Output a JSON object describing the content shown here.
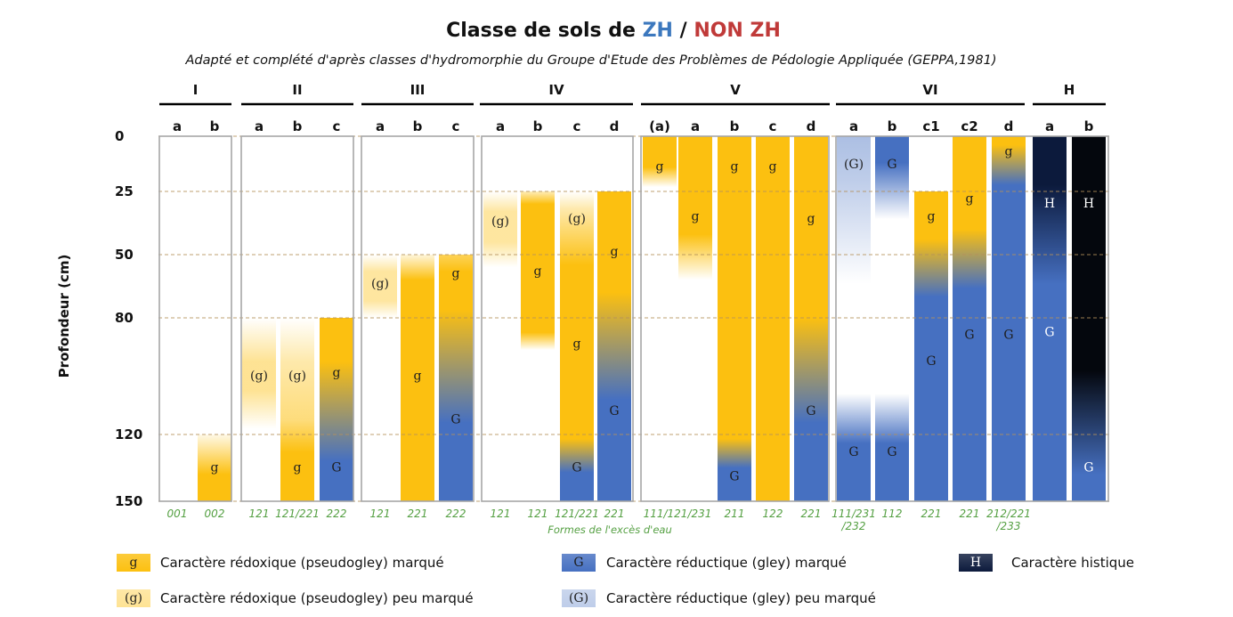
{
  "title": {
    "prefix": "Classe de sols de ",
    "zh": "ZH",
    "sep": " / ",
    "nonzh": "NON ZH"
  },
  "subtitle": "Adapté et complété d'après classes d'hydromorphie du Groupe d'Etude des Problèmes de Pédologie Appliquée (GEPPA,1981)",
  "ylabel": "Profondeur (cm)",
  "footer_label": "Formes de l'excès d'eau",
  "colors": {
    "zh": "#3c78be",
    "nonzh": "#c03a39",
    "mark": "#1e1e1e",
    "code": "#55a043",
    "frame": "#a6a6a6",
    "grid": "#b5915a"
  },
  "chart_data": {
    "type": "diagram",
    "y_axis": "depth (cm)"
  },
  "depth_ticks": [
    0,
    25,
    50,
    80,
    120,
    150
  ],
  "groups": [
    {
      "label": "I",
      "columns": [
        {
          "letter": "a",
          "letter_color": "#c03a39",
          "code": [
            "001"
          ],
          "profile": [],
          "marks": []
        },
        {
          "letter": "b",
          "letter_color": "#c03a39",
          "code": [
            "002"
          ],
          "profile": [
            [
              120,
              "#fcc010",
              0.1
            ],
            [
              138,
              "#fcc010",
              1
            ],
            [
              150,
              "#fcc010",
              1
            ]
          ],
          "marks": [
            {
              "t": "g",
              "d": 135
            }
          ]
        }
      ]
    },
    {
      "label": "II",
      "columns": [
        {
          "letter": "a",
          "letter_color": "#c03a39",
          "code": [
            "121"
          ],
          "profile": [
            [
              80,
              "#fcc010",
              0
            ],
            [
              95,
              "#fcc010",
              0.45
            ],
            [
              105,
              "#fcc010",
              0.45
            ],
            [
              118,
              "#fcc010",
              0
            ]
          ],
          "marks": [
            {
              "t": "(g)",
              "d": 100
            }
          ]
        },
        {
          "letter": "b",
          "letter_color": "#c03a39",
          "code": [
            "121/221"
          ],
          "profile": [
            [
              80,
              "#fcc010",
              0
            ],
            [
              95,
              "#fcc010",
              0.35
            ],
            [
              115,
              "#fcc010",
              0.55
            ],
            [
              128,
              "#fcc010",
              1
            ],
            [
              150,
              "#fcc010",
              1
            ]
          ],
          "marks": [
            {
              "t": "(g)",
              "d": 100
            },
            {
              "t": "g",
              "d": 135
            }
          ]
        },
        {
          "letter": "c",
          "letter_color": "#c03a39",
          "code": [
            "222"
          ],
          "profile": [
            [
              80,
              "#fcc010",
              1
            ],
            [
              95,
              "#fcc010",
              1
            ],
            [
              132,
              "#4670c1",
              1
            ],
            [
              150,
              "#4670c1",
              1
            ]
          ],
          "marks": [
            {
              "t": "g",
              "d": 99
            },
            {
              "t": "G",
              "d": 135
            }
          ]
        }
      ]
    },
    {
      "label": "III",
      "columns": [
        {
          "letter": "a",
          "letter_color": "#c03a39",
          "code": [
            "121"
          ],
          "profile": [
            [
              50,
              "#fcc010",
              0
            ],
            [
              58,
              "#fcc010",
              0.4
            ],
            [
              72,
              "#fcc010",
              0.4
            ],
            [
              80,
              "#fcc010",
              0
            ]
          ],
          "marks": [
            {
              "t": "(g)",
              "d": 64
            }
          ]
        },
        {
          "letter": "b",
          "letter_color": "#c03a39",
          "code": [
            "221"
          ],
          "profile": [
            [
              50,
              "#fcc010",
              0.15
            ],
            [
              62,
              "#fcc010",
              1
            ],
            [
              150,
              "#fcc010",
              1
            ]
          ],
          "marks": [
            {
              "t": "g",
              "d": 100
            }
          ]
        },
        {
          "letter": "c",
          "letter_color": "#c03a39",
          "code": [
            "222"
          ],
          "profile": [
            [
              50,
              "#fcc010",
              0.7
            ],
            [
              58,
              "#fcc010",
              1
            ],
            [
              76,
              "#fcc010",
              1
            ],
            [
              116,
              "#4670c1",
              1
            ],
            [
              150,
              "#4670c1",
              1
            ]
          ],
          "marks": [
            {
              "t": "g",
              "d": 59
            },
            {
              "t": "G",
              "d": 115
            }
          ]
        }
      ]
    },
    {
      "label": "IV",
      "columns": [
        {
          "letter": "a",
          "letter_color": "#c03a39",
          "code": [
            "121"
          ],
          "profile": [
            [
              25,
              "#fcc010",
              0
            ],
            [
              33,
              "#fcc010",
              0.4
            ],
            [
              45,
              "#fcc010",
              0.4
            ],
            [
              56,
              "#fcc010",
              0
            ]
          ],
          "marks": [
            {
              "t": "(g)",
              "d": 37
            }
          ]
        },
        {
          "letter": "b",
          "letter_color": "#c03a39",
          "code": [
            "121"
          ],
          "profile": [
            [
              25,
              "#fcc010",
              0.3
            ],
            [
              30,
              "#fcc010",
              1
            ],
            [
              85,
              "#fcc010",
              1
            ],
            [
              91,
              "#fcc010",
              0
            ]
          ],
          "marks": [
            {
              "t": "g",
              "d": 58
            }
          ]
        },
        {
          "letter": "c",
          "letter_color": "#c03a39",
          "code": [
            "121/221"
          ],
          "profile": [
            [
              25,
              "#fcc010",
              0
            ],
            [
              32,
              "#fcc010",
              0.35
            ],
            [
              55,
              "#fcc010",
              1
            ],
            [
              122,
              "#fcc010",
              1
            ],
            [
              137,
              "#4670c1",
              1
            ],
            [
              150,
              "#4670c1",
              1
            ]
          ],
          "marks": [
            {
              "t": "(g)",
              "d": 36
            },
            {
              "t": "g",
              "d": 89
            },
            {
              "t": "G",
              "d": 135
            }
          ]
        },
        {
          "letter": "d",
          "letter_color": "#3c78be",
          "code": [
            "221"
          ],
          "profile": [
            [
              25,
              "#fcc010",
              1
            ],
            [
              68,
              "#fcc010",
              1
            ],
            [
              108,
              "#4670c1",
              1
            ],
            [
              150,
              "#4670c1",
              1
            ]
          ],
          "marks": [
            {
              "t": "g",
              "d": 49
            },
            {
              "t": "G",
              "d": 112
            }
          ]
        }
      ]
    },
    {
      "label": "V",
      "columns": [
        {
          "letter": "(a)",
          "letter_color": "#c03a39",
          "code": [
            "111/121/231"
          ],
          "code_span": 2,
          "profile": [
            [
              0,
              "#fcc010",
              1
            ],
            [
              14,
              "#fcc010",
              1
            ],
            [
              23,
              "#fcc010",
              0
            ]
          ],
          "marks": [
            {
              "t": "g",
              "d": 14
            }
          ]
        },
        {
          "letter": "a",
          "letter_color": "#3c78be",
          "code": [],
          "profile": [
            [
              0,
              "#fcc010",
              1
            ],
            [
              42,
              "#fcc010",
              1
            ],
            [
              62,
              "#fcc010",
              0
            ]
          ],
          "marks": [
            {
              "t": "g",
              "d": 35
            }
          ]
        },
        {
          "letter": "b",
          "letter_color": "#3c78be",
          "code": [
            "211"
          ],
          "profile": [
            [
              0,
              "#fcc010",
              1
            ],
            [
              122,
              "#fcc010",
              1
            ],
            [
              135,
              "#4670c1",
              1
            ],
            [
              150,
              "#4670c1",
              1
            ]
          ],
          "marks": [
            {
              "t": "g",
              "d": 14
            },
            {
              "t": "G",
              "d": 139
            }
          ]
        },
        {
          "letter": "c",
          "letter_color": "#3c78be",
          "code": [
            "122"
          ],
          "profile": [
            [
              0,
              "#fcc010",
              1
            ],
            [
              150,
              "#fcc010",
              1
            ]
          ],
          "marks": [
            {
              "t": "g",
              "d": 14
            }
          ]
        },
        {
          "letter": "d",
          "letter_color": "#3c78be",
          "code": [
            "221"
          ],
          "profile": [
            [
              0,
              "#fcc010",
              1
            ],
            [
              80,
              "#fcc010",
              1
            ],
            [
              116,
              "#4670c1",
              1
            ],
            [
              150,
              "#4670c1",
              1
            ]
          ],
          "marks": [
            {
              "t": "g",
              "d": 36
            },
            {
              "t": "G",
              "d": 112
            }
          ]
        }
      ]
    },
    {
      "label": "VI",
      "columns": [
        {
          "letter": "a",
          "letter_color": "#c03a39",
          "code": [
            "111/231",
            "/232"
          ],
          "profile": [
            [
              0,
              "#4670c1",
              0.45
            ],
            [
              20,
              "#4670c1",
              0.35
            ],
            [
              64,
              "#4670c1",
              0
            ],
            [
              106,
              "#4670c1",
              0
            ],
            [
              124,
              "#4670c1",
              1
            ],
            [
              150,
              "#4670c1",
              1
            ]
          ],
          "marks": [
            {
              "t": "(G)",
              "d": 13
            },
            {
              "t": "G",
              "d": 128
            }
          ]
        },
        {
          "letter": "b",
          "letter_color": "#c03a39",
          "code": [
            "112"
          ],
          "profile": [
            [
              0,
              "#4670c1",
              1
            ],
            [
              12,
              "#4670c1",
              1
            ],
            [
              36,
              "#4670c1",
              0
            ],
            [
              106,
              "#4670c1",
              0
            ],
            [
              124,
              "#4670c1",
              1
            ],
            [
              150,
              "#4670c1",
              1
            ]
          ],
          "marks": [
            {
              "t": "G",
              "d": 13
            },
            {
              "t": "G",
              "d": 128
            }
          ]
        },
        {
          "letter": "c1",
          "letter_color": "#3c78be",
          "code": [
            "221"
          ],
          "profile": [
            [
              25,
              "#fcc010",
              1
            ],
            [
              44,
              "#fcc010",
              1
            ],
            [
              70,
              "#4670c1",
              1
            ],
            [
              150,
              "#4670c1",
              1
            ]
          ],
          "marks": [
            {
              "t": "g",
              "d": 35
            },
            {
              "t": "G",
              "d": 95
            }
          ]
        },
        {
          "letter": "c2",
          "letter_color": "#3c78be",
          "code": [
            "221"
          ],
          "profile": [
            [
              0,
              "#fcc010",
              1
            ],
            [
              40,
              "#fcc010",
              1
            ],
            [
              66,
              "#4670c1",
              1
            ],
            [
              150,
              "#4670c1",
              1
            ]
          ],
          "marks": [
            {
              "t": "g",
              "d": 28
            },
            {
              "t": "G",
              "d": 86
            }
          ]
        },
        {
          "letter": "d",
          "letter_color": "#3c78be",
          "code": [
            "212/221",
            "/233"
          ],
          "profile": [
            [
              0,
              "#fcc010",
              1
            ],
            [
              4,
              "#fcc010",
              1
            ],
            [
              22,
              "#4670c1",
              1
            ],
            [
              150,
              "#4670c1",
              1
            ]
          ],
          "marks": [
            {
              "t": "g",
              "d": 7
            },
            {
              "t": "G",
              "d": 86
            }
          ]
        }
      ]
    },
    {
      "label": "H",
      "mark_color": "#ffffff",
      "columns": [
        {
          "letter": "a",
          "letter_color": "#3c78be",
          "code": [],
          "profile": [
            [
              0,
              "#0c1a3c",
              1
            ],
            [
              22,
              "#0c1a3c",
              1
            ],
            [
              64,
              "#4670c1",
              1
            ],
            [
              150,
              "#4670c1",
              1
            ]
          ],
          "marks": [
            {
              "t": "H",
              "d": 30
            },
            {
              "t": "G",
              "d": 85
            }
          ]
        },
        {
          "letter": "b",
          "letter_color": "#3c78be",
          "code": [],
          "profile": [
            [
              0,
              "#04070d",
              1
            ],
            [
              98,
              "#04070d",
              1
            ],
            [
              138,
              "#4670c1",
              1
            ],
            [
              150,
              "#4670c1",
              1
            ]
          ],
          "marks": [
            {
              "t": "H",
              "d": 30
            },
            {
              "t": "G",
              "d": 135
            }
          ]
        }
      ]
    }
  ],
  "legend": [
    {
      "mark": "g",
      "color": "#fcc010",
      "opacity": 1,
      "mark_color": "#1e1e1e",
      "text": "Caractère rédoxique (pseudogley) marqué"
    },
    {
      "mark": "G",
      "color": "#4670c1",
      "opacity": 1,
      "mark_color": "#1e1e1e",
      "text": "Caractère réductique (gley) marqué"
    },
    {
      "mark": "H",
      "color": "#0c1a3c",
      "opacity": 1,
      "mark_color": "#ffffff",
      "text": "Caractère histique"
    },
    {
      "mark": "(g)",
      "color": "#fcc010",
      "opacity": 0.45,
      "mark_color": "#1e1e1e",
      "text": "Caractère rédoxique (pseudogley) peu marqué"
    },
    {
      "mark": "(G)",
      "color": "#4670c1",
      "opacity": 0.35,
      "mark_color": "#1e1e1e",
      "text": "Caractère réductique (gley) peu marqué"
    }
  ]
}
